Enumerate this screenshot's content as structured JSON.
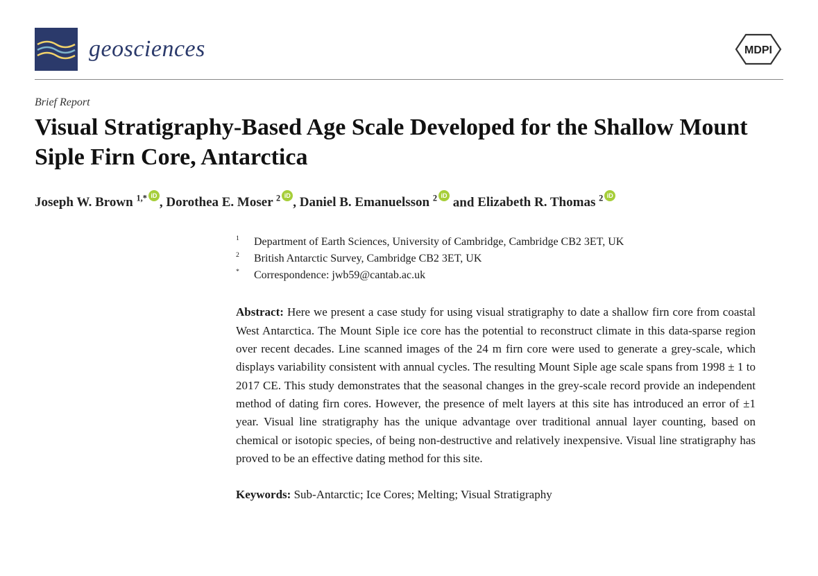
{
  "journal": {
    "name": "geosciences",
    "logo_bg": "#2b3a6b",
    "wave_colors": [
      "#f2d36b",
      "#7fb4c9",
      "#f2d36b"
    ]
  },
  "publisher": "MDPI",
  "article_type": "Brief Report",
  "title": "Visual Stratigraphy-Based Age Scale Developed for the Shallow Mount Siple Firn Core, Antarctica",
  "authors": [
    {
      "name": "Joseph W. Brown",
      "marks": "1,*",
      "orcid": true
    },
    {
      "name": "Dorothea E. Moser",
      "marks": "2",
      "orcid": true
    },
    {
      "name": "Daniel B. Emanuelsson",
      "marks": "2",
      "orcid": true
    },
    {
      "name": "Elizabeth R. Thomas",
      "marks": "2",
      "orcid": true
    }
  ],
  "affiliations": [
    {
      "key": "1",
      "text": "Department of Earth Sciences, University of Cambridge, Cambridge CB2 3ET, UK"
    },
    {
      "key": "2",
      "text": "British Antarctic Survey, Cambridge CB2 3ET, UK"
    },
    {
      "key": "*",
      "text": "Correspondence: jwb59@cantab.ac.uk"
    }
  ],
  "abstract_label": "Abstract:",
  "abstract": "Here we present a case study for using visual stratigraphy to date a shallow firn core from coastal West Antarctica. The Mount Siple ice core has the potential to reconstruct climate in this data-sparse region over recent decades. Line scanned images of the 24 m firn core were used to generate a grey-scale, which displays variability consistent with annual cycles. The resulting Mount Siple age scale spans from 1998 ± 1 to 2017 CE. This study demonstrates that the seasonal changes in the grey-scale record provide an independent method of dating firn cores. However, the presence of melt layers at this site has introduced an error of ±1 year. Visual line stratigraphy has the unique advantage over traditional annual layer counting, based on chemical or isotopic species, of being non-destructive and relatively inexpensive. Visual line stratigraphy has proved to be an effective dating method for this site.",
  "keywords_label": "Keywords:",
  "keywords": "Sub-Antarctic; Ice Cores; Melting; Visual Stratigraphy",
  "colors": {
    "text": "#1a1a1a",
    "brand": "#2b3a6b",
    "orcid": "#a6ce39",
    "rule": "#888888",
    "background": "#ffffff"
  },
  "typography": {
    "title_fontsize": 34,
    "title_weight": 700,
    "authors_fontsize": 19,
    "body_fontsize": 17,
    "journal_fontsize": 34
  }
}
